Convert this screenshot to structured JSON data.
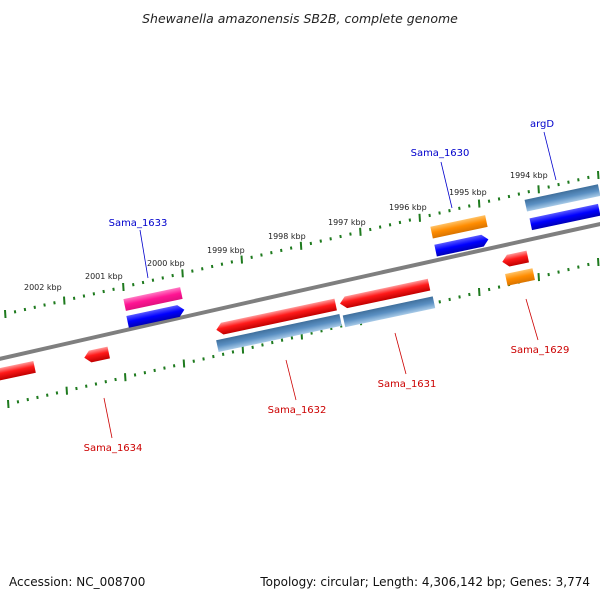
{
  "title": "Shewanella amazonensis SB2B, complete genome",
  "footer": {
    "accession": "Accession: NC_008700",
    "summary": "Topology: circular; Length: 4,306,142 bp; Genes: 3,774"
  },
  "colors": {
    "backbone": "#7f7f7f",
    "tick": "#1e7a1e",
    "gene_red": "#ff0000",
    "gene_blue": "#0000ff",
    "gene_steel": "#4682b4",
    "gene_orange": "#ff8c00",
    "gene_pink": "#ff1493",
    "label_blue": "#0000cc",
    "label_red": "#cc0000"
  },
  "scale": {
    "unit": "kbp",
    "tick_labels": [
      "2002 kbp",
      "2001 kbp",
      "2000 kbp",
      "1999 kbp",
      "1998 kbp",
      "1997 kbp",
      "1996 kbp",
      "1995 kbp",
      "1994 kbp"
    ]
  },
  "genes": {
    "above": [
      {
        "name": "Sama_1633",
        "color": "blue"
      },
      {
        "name": "Sama_1630",
        "color": "blue"
      },
      {
        "name": "argD",
        "color": "blue"
      }
    ],
    "below": [
      {
        "name": "Sama_1634",
        "color": "red"
      },
      {
        "name": "Sama_1632",
        "color": "red"
      },
      {
        "name": "Sama_1631",
        "color": "red"
      },
      {
        "name": "Sama_1629",
        "color": "red"
      }
    ]
  }
}
